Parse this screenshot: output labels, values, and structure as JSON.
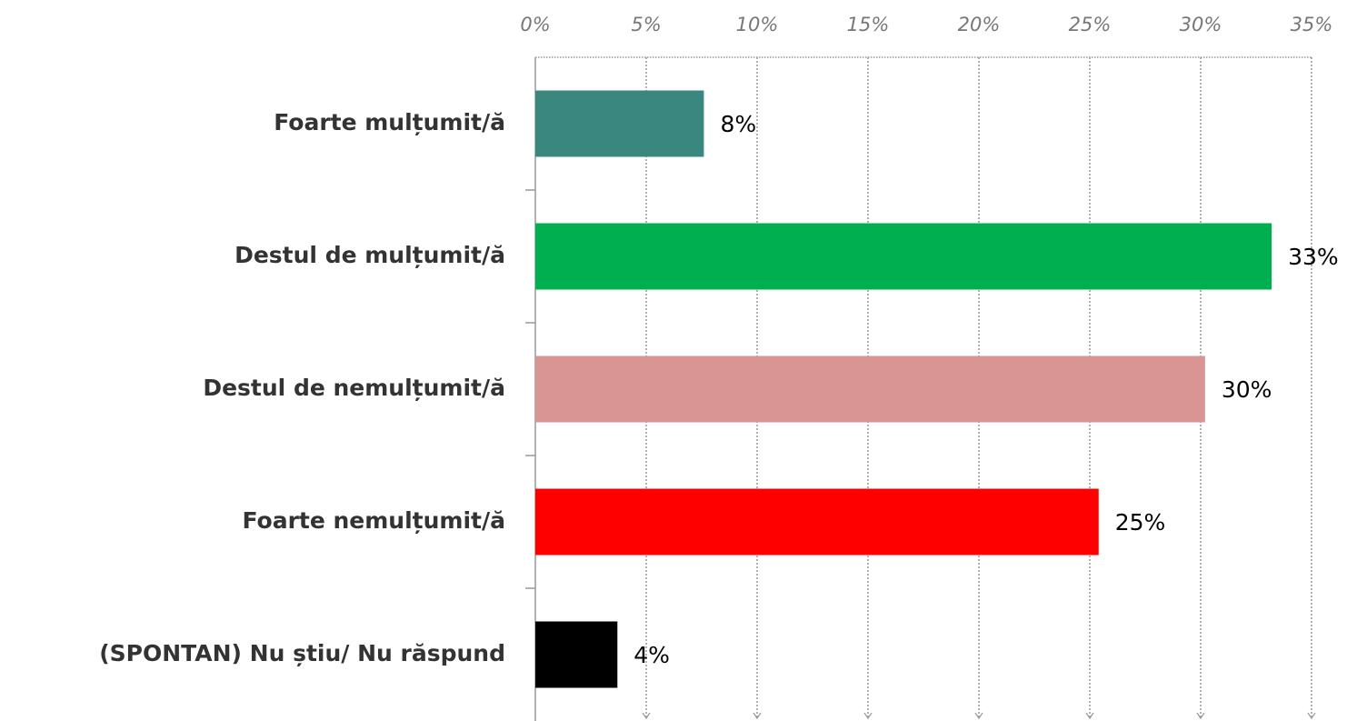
{
  "chart_data": {
    "type": "bar",
    "orientation": "horizontal",
    "categories": [
      "Foarte mulțumit/ă",
      "Destul de mulțumit/ă",
      "Destul de nemulțumit/ă",
      "Foarte nemulțumit/ă",
      "(SPONTAN) Nu știu/ Nu răspund"
    ],
    "values": [
      7.6,
      33.2,
      30.2,
      25.4,
      3.7
    ],
    "value_labels": [
      "8%",
      "33%",
      "30%",
      "25%",
      "4%"
    ],
    "colors": [
      "#3a8780",
      "#00b050",
      "#d99594",
      "#ff0000",
      "#000000"
    ],
    "xlim": [
      0,
      35
    ],
    "xticks": [
      {
        "value": 0,
        "label": "0%"
      },
      {
        "value": 5,
        "label": "5%"
      },
      {
        "value": 10,
        "label": "10%"
      },
      {
        "value": 15,
        "label": "15%"
      },
      {
        "value": 20,
        "label": "20%"
      },
      {
        "value": 25,
        "label": "25%"
      },
      {
        "value": 30,
        "label": "30%"
      },
      {
        "value": 35,
        "label": "35%"
      }
    ],
    "grid": true
  }
}
